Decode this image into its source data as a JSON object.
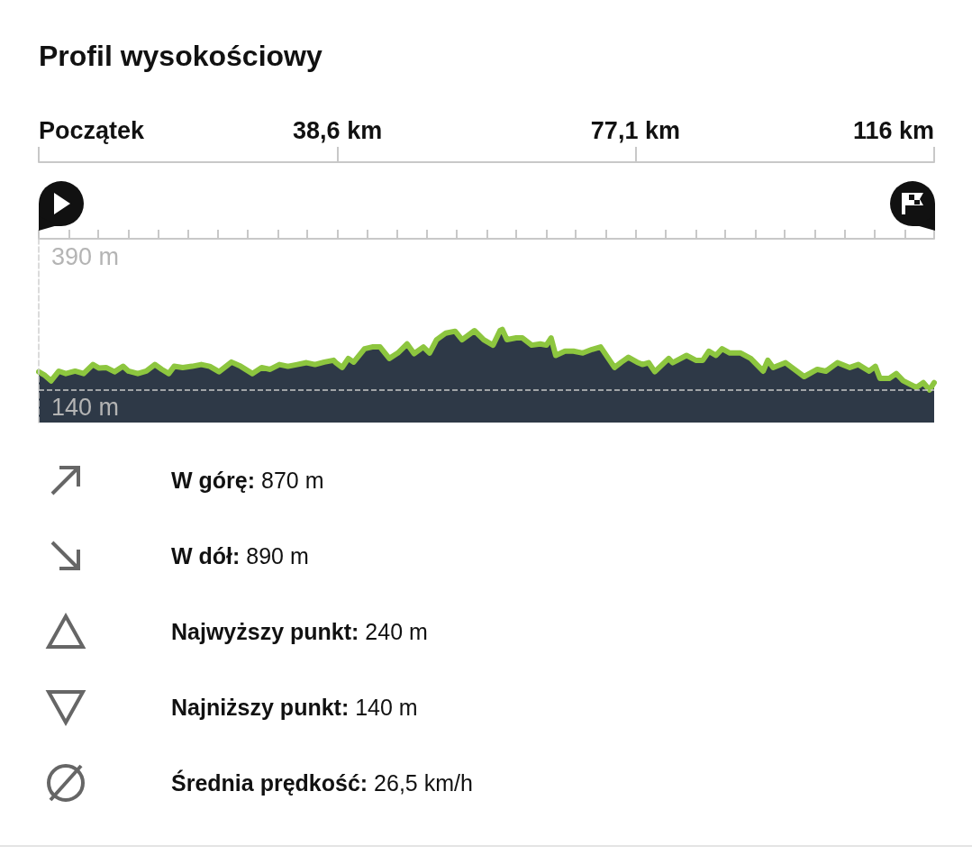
{
  "chart_data": {
    "type": "area",
    "title": "Profil wysokościowy",
    "x": [
      0,
      0.8,
      1.6,
      2.6,
      3.5,
      4.7,
      5.8,
      7.0,
      7.8,
      8.7,
      9.8,
      10.9,
      11.6,
      12.8,
      13.9,
      15.0,
      15.9,
      16.8,
      17.5,
      18.6,
      19.8,
      21.0,
      22.1,
      23.3,
      24.9,
      26.1,
      27.6,
      28.8,
      29.9,
      31.1,
      32.2,
      33.4,
      34.6,
      35.7,
      36.9,
      38.1,
      38.4,
      39.2,
      40.0,
      40.7,
      42.1,
      43.1,
      44.1,
      45.3,
      46.4,
      47.6,
      48.5,
      49.7,
      50.5,
      51.4,
      52.6,
      53.8,
      54.7,
      56.3,
      57.5,
      58.7,
      59.6,
      59.9,
      60.5,
      61.7,
      62.5,
      63.7,
      64.8,
      65.6,
      66.2,
      66.8,
      68.0,
      69.1,
      70.3,
      71.5,
      72.6,
      74.4,
      75.3,
      76.2,
      77.3,
      78.0,
      78.8,
      79.6,
      81.4,
      81.9,
      83.7,
      84.9,
      85.8,
      86.6,
      87.5,
      88.3,
      89.3,
      90.7,
      92.0,
      93.6,
      94.2,
      94.9,
      96.5,
      98.9,
      100.6,
      101.7,
      103.2,
      104.8,
      105.9,
      107.3,
      108.1,
      108.7,
      109.9,
      110.8,
      111.7,
      113.4,
      114.3,
      115.1,
      115.7
    ],
    "series": [
      {
        "color": "#8dc63f",
        "values": [
          170,
          164,
          155,
          171,
          167,
          171,
          167,
          182,
          176,
          177,
          170,
          179,
          171,
          167,
          171,
          182,
          174,
          167,
          179,
          177,
          179,
          182,
          179,
          170,
          186,
          179,
          167,
          177,
          174,
          182,
          179,
          182,
          185,
          182,
          186,
          189,
          185,
          177,
          192,
          186,
          208,
          211,
          211,
          192,
          201,
          216,
          200,
          211,
          201,
          223,
          234,
          237,
          223,
          238,
          223,
          214,
          238,
          240,
          223,
          226,
          226,
          214,
          216,
          214,
          226,
          197,
          204,
          204,
          201,
          207,
          211,
          177,
          186,
          194,
          186,
          182,
          185,
          170,
          192,
          185,
          197,
          189,
          189,
          204,
          197,
          208,
          201,
          201,
          192,
          171,
          189,
          177,
          185,
          162,
          174,
          171,
          185,
          177,
          182,
          171,
          179,
          159,
          159,
          167,
          155,
          144,
          152,
          140,
          152
        ]
      }
    ],
    "xlim": [
      0,
      115.7
    ],
    "xticks": [
      {
        "value": 0,
        "label": "Początek"
      },
      {
        "value": 3.9,
        "label": null
      },
      {
        "value": 7.7,
        "label": null
      },
      {
        "value": 11.6,
        "label": null
      },
      {
        "value": 15.4,
        "label": null
      },
      {
        "value": 19.3,
        "label": null
      },
      {
        "value": 23.1,
        "label": null
      },
      {
        "value": 27.0,
        "label": null
      },
      {
        "value": 30.9,
        "label": null
      },
      {
        "value": 34.7,
        "label": null
      },
      {
        "value": 38.6,
        "label": "38,6 km"
      },
      {
        "value": 42.4,
        "label": null
      },
      {
        "value": 46.3,
        "label": null
      },
      {
        "value": 50.1,
        "label": null
      },
      {
        "value": 54.0,
        "label": null
      },
      {
        "value": 57.9,
        "label": null
      },
      {
        "value": 61.7,
        "label": null
      },
      {
        "value": 65.6,
        "label": null
      },
      {
        "value": 69.4,
        "label": null
      },
      {
        "value": 73.3,
        "label": null
      },
      {
        "value": 77.1,
        "label": "77,1 km"
      },
      {
        "value": 81.0,
        "label": null
      },
      {
        "value": 84.9,
        "label": null
      },
      {
        "value": 88.7,
        "label": null
      },
      {
        "value": 92.6,
        "label": null
      },
      {
        "value": 96.4,
        "label": null
      },
      {
        "value": 100.3,
        "label": null
      },
      {
        "value": 104.1,
        "label": null
      },
      {
        "value": 108.0,
        "label": null
      },
      {
        "value": 111.9,
        "label": null
      },
      {
        "value": 115.7,
        "label": "116 km"
      }
    ],
    "ylim": [
      86,
      390
    ],
    "yticks": [
      {
        "value": 390,
        "label": "390 m"
      },
      {
        "value": 140,
        "label": "140 m"
      }
    ],
    "grid": "y",
    "annotations": [
      "W górę: 870 m",
      "W dół: 890 m",
      "Najwyższy punkt: 240 m",
      "Najniższy punkt: 140 m",
      "Średnia prędkość: 26,5 km/h"
    ]
  }
}
